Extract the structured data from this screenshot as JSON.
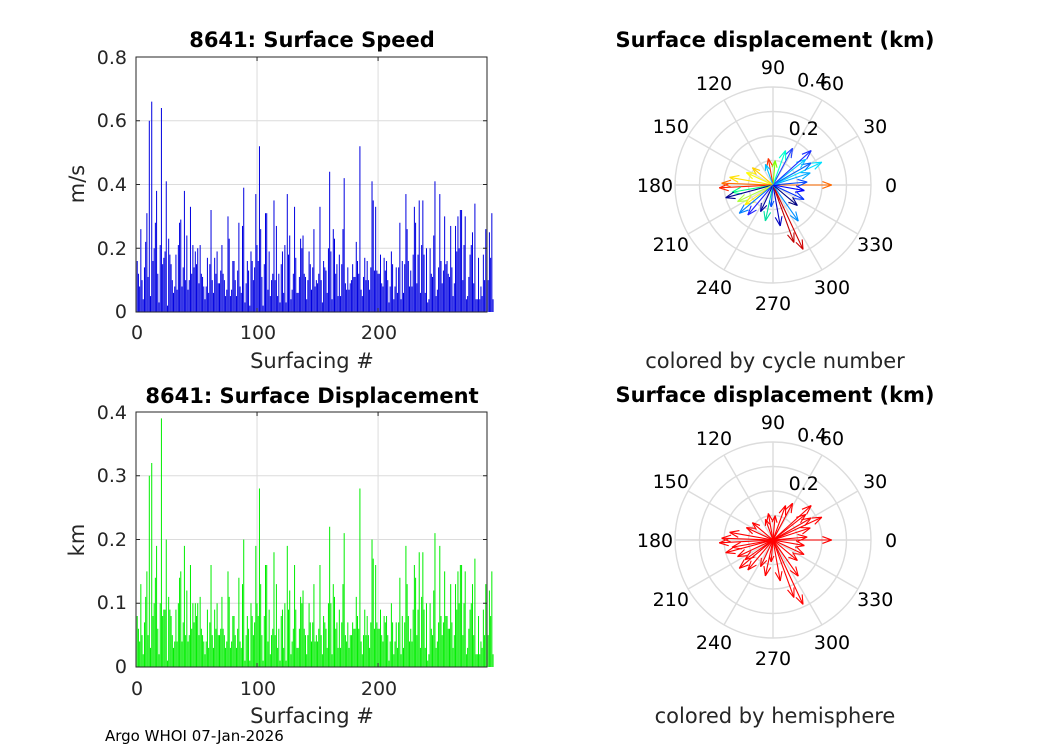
{
  "footer": "Argo WHOI 07-Jan-2026",
  "colors": {
    "speed_bar": "#0000e0",
    "displacement_bar": "#00ee00",
    "hemisphere_arrow": "#ff0000",
    "grid": "#dcdcdc",
    "axis": "#262626"
  },
  "chart_data": [
    {
      "type": "bar",
      "title": "8641: Surface Speed",
      "xlabel": "Surfacing #",
      "ylabel": "m/s",
      "xlim": [
        0,
        290
      ],
      "ylim": [
        0,
        0.8
      ],
      "xticks": [
        "0",
        "100",
        "200"
      ],
      "yticks": [
        "0",
        "0.2",
        "0.4",
        "0.6",
        "0.8"
      ],
      "note": "≈290 surfacings; values estimated from the figure (peaks 0.66 near #12, 0.64 near #22, 0.52 near #101 and #180)",
      "series": [
        {
          "name": "speed",
          "values": [
            0.16,
            0.12,
            0.08,
            0.26,
            0.1,
            0.04,
            0.14,
            0.22,
            0.31,
            0.11,
            0.6,
            0.05,
            0.66,
            0.16,
            0.2,
            0.28,
            0.38,
            0.12,
            0.03,
            0.21,
            0.64,
            0.15,
            0.17,
            0.19,
            0.41,
            0.02,
            0.23,
            0.18,
            0.15,
            0.1,
            0.06,
            0.08,
            0.18,
            0.07,
            0.21,
            0.28,
            0.29,
            0.08,
            0.14,
            0.38,
            0.1,
            0.24,
            0.07,
            0.1,
            0.33,
            0.12,
            0.21,
            0.14,
            0.19,
            0.15,
            0.2,
            0.09,
            0.21,
            0.12,
            0.11,
            0.08,
            0.04,
            0.08,
            0.17,
            0.06,
            0.15,
            0.32,
            0.1,
            0.06,
            0.17,
            0.12,
            0.19,
            0.09,
            0.09,
            0.13,
            0.21,
            0.12,
            0.1,
            0.05,
            0.07,
            0.3,
            0.23,
            0.05,
            0.07,
            0.16,
            0.16,
            0.1,
            0.05,
            0.13,
            0.28,
            0.08,
            0.06,
            0.27,
            0.39,
            0.03,
            0.09,
            0.16,
            0.13,
            0.02,
            0.19,
            0.16,
            0.1,
            0.14,
            0.37,
            0.21,
            0.16,
            0.52,
            0.26,
            0.11,
            0.02,
            0.15,
            0.31,
            0.31,
            0.07,
            0.19,
            0.05,
            0.1,
            0.12,
            0.35,
            0.1,
            0.27,
            0.05,
            0.12,
            0.03,
            0.15,
            0.19,
            0.06,
            0.21,
            0.03,
            0.37,
            0.18,
            0.24,
            0.04,
            0.07,
            0.12,
            0.33,
            0.17,
            0.06,
            0.06,
            0.11,
            0.23,
            0.2,
            0.24,
            0.12,
            0.11,
            0.04,
            0.1,
            0.19,
            0.15,
            0.07,
            0.14,
            0.26,
            0.08,
            0.1,
            0.09,
            0.12,
            0.33,
            0.1,
            0.03,
            0.16,
            0.14,
            0.13,
            0.06,
            0.2,
            0.44,
            0.19,
            0.04,
            0.26,
            0.23,
            0.12,
            0.15,
            0.05,
            0.18,
            0.05,
            0.15,
            0.26,
            0.42,
            0.09,
            0.07,
            0.14,
            0.07,
            0.09,
            0.1,
            0.15,
            0.11,
            0.11,
            0.22,
            0.16,
            0.12,
            0.52,
            0.07,
            0.05,
            0.11,
            0.17,
            0.1,
            0.16,
            0.1,
            0.07,
            0.14,
            0.41,
            0.35,
            0.13,
            0.33,
            0.13,
            0.12,
            0.12,
            0.18,
            0.09,
            0.08,
            0.17,
            0.13,
            0.16,
            0.1,
            0.03,
            0.08,
            0.19,
            0.15,
            0.04,
            0.08,
            0.14,
            0.06,
            0.14,
            0.28,
            0.04,
            0.16,
            0.06,
            0.15,
            0.37,
            0.26,
            0.16,
            0.08,
            0.13,
            0.08,
            0.18,
            0.33,
            0.28,
            0.09,
            0.18,
            0.35,
            0.06,
            0.21,
            0.35,
            0.18,
            0.06,
            0.2,
            0.03,
            0.04,
            0.2,
            0.12,
            0.11,
            0.24,
            0.41,
            0.05,
            0.07,
            0.14,
            0.37,
            0.16,
            0.09,
            0.13,
            0.3,
            0.15,
            0.16,
            0.12,
            0.11,
            0.27,
            0.14,
            0.05,
            0.09,
            0.27,
            0.19,
            0.3,
            0.2,
            0.32,
            0.32,
            0.1,
            0.21,
            0.3,
            0.04,
            0.05,
            0.11,
            0.18,
            0.21,
            0.25,
            0.09,
            0.34,
            0.04,
            0.04,
            0.17,
            0.04,
            0.08,
            0.05,
            0.18,
            0.1,
            0.26,
            0.1,
            0.1,
            0.25,
            0.17,
            0.31,
            0.04
          ]
        }
      ]
    },
    {
      "type": "polar",
      "title": "Surface displacement (km)",
      "caption": "colored by cycle number",
      "rlim": [
        0,
        0.4
      ],
      "rticks": [
        "0.2",
        "0.4"
      ],
      "angle_ticks": [
        "0",
        "30",
        "60",
        "90",
        "120",
        "150",
        "180",
        "210",
        "240",
        "270",
        "300",
        "330"
      ],
      "note": "displacement arrows from origin; a representative subset with angles (deg) and lengths (km) estimated from the figure; colormap = cycle number (early=blue, late=red)",
      "arrows": [
        {
          "angle": 0,
          "r": 0.24,
          "color": "#ff6a00"
        },
        {
          "angle": 5,
          "r": 0.14,
          "color": "#0044ff"
        },
        {
          "angle": 18,
          "r": 0.16,
          "color": "#00aaff"
        },
        {
          "angle": 25,
          "r": 0.22,
          "color": "#00e0ff"
        },
        {
          "angle": 30,
          "r": 0.18,
          "color": "#0066ff"
        },
        {
          "angle": 38,
          "r": 0.17,
          "color": "#00c8ff"
        },
        {
          "angle": 42,
          "r": 0.21,
          "color": "#1b2fff"
        },
        {
          "angle": 62,
          "r": 0.17,
          "color": "#2040ff"
        },
        {
          "angle": 70,
          "r": 0.15,
          "color": "#00ffd0"
        },
        {
          "angle": 85,
          "r": 0.1,
          "color": "#80ff00"
        },
        {
          "angle": 100,
          "r": 0.11,
          "color": "#ff3000"
        },
        {
          "angle": 110,
          "r": 0.09,
          "color": "#00c0ff"
        },
        {
          "angle": 140,
          "r": 0.11,
          "color": "#ffd000"
        },
        {
          "angle": 155,
          "r": 0.12,
          "color": "#ffff00"
        },
        {
          "angle": 170,
          "r": 0.18,
          "color": "#ffe000"
        },
        {
          "angle": 178,
          "r": 0.21,
          "color": "#ff7000"
        },
        {
          "angle": 183,
          "r": 0.22,
          "color": "#ff2000"
        },
        {
          "angle": 190,
          "r": 0.17,
          "color": "#00ff80"
        },
        {
          "angle": 195,
          "r": 0.2,
          "color": "#000090"
        },
        {
          "angle": 205,
          "r": 0.16,
          "color": "#b0ff40"
        },
        {
          "angle": 215,
          "r": 0.14,
          "color": "#ffee00"
        },
        {
          "angle": 220,
          "r": 0.18,
          "color": "#0080ff"
        },
        {
          "angle": 230,
          "r": 0.16,
          "color": "#2020ff"
        },
        {
          "angle": 245,
          "r": 0.12,
          "color": "#0000a0"
        },
        {
          "angle": 258,
          "r": 0.15,
          "color": "#00e0a0"
        },
        {
          "angle": 265,
          "r": 0.09,
          "color": "#0050ff"
        },
        {
          "angle": 280,
          "r": 0.17,
          "color": "#0000c0"
        },
        {
          "angle": 290,
          "r": 0.25,
          "color": "#c00000"
        },
        {
          "angle": 295,
          "r": 0.29,
          "color": "#d00000"
        },
        {
          "angle": 305,
          "r": 0.18,
          "color": "#0090ff"
        },
        {
          "angle": 320,
          "r": 0.13,
          "color": "#000080"
        },
        {
          "angle": 335,
          "r": 0.14,
          "color": "#0030ff"
        },
        {
          "angle": 350,
          "r": 0.13,
          "color": "#0000ff"
        }
      ]
    },
    {
      "type": "bar",
      "title": "8641: Surface Displacement",
      "xlabel": "Surfacing #",
      "ylabel": "km",
      "xlim": [
        0,
        290
      ],
      "ylim": [
        0,
        0.4
      ],
      "xticks": [
        "0",
        "100",
        "200"
      ],
      "yticks": [
        "0",
        "0.1",
        "0.2",
        "0.3",
        "0.4"
      ],
      "note": "≈290 surfacings; values estimated from the figure (peak 0.39 near #22, 0.32 near #12, 0.28 near #101 and #180)",
      "series": [
        {
          "name": "displacement",
          "values": [
            0.08,
            0.06,
            0.04,
            0.13,
            0.05,
            0.02,
            0.07,
            0.11,
            0.15,
            0.05,
            0.3,
            0.03,
            0.32,
            0.08,
            0.1,
            0.14,
            0.19,
            0.06,
            0.02,
            0.1,
            0.39,
            0.08,
            0.09,
            0.09,
            0.2,
            0.01,
            0.11,
            0.09,
            0.08,
            0.05,
            0.03,
            0.04,
            0.09,
            0.04,
            0.1,
            0.14,
            0.15,
            0.04,
            0.07,
            0.19,
            0.05,
            0.12,
            0.04,
            0.05,
            0.16,
            0.06,
            0.1,
            0.07,
            0.1,
            0.08,
            0.1,
            0.05,
            0.11,
            0.06,
            0.05,
            0.04,
            0.02,
            0.04,
            0.09,
            0.03,
            0.07,
            0.16,
            0.05,
            0.03,
            0.09,
            0.06,
            0.1,
            0.05,
            0.05,
            0.06,
            0.11,
            0.06,
            0.05,
            0.03,
            0.04,
            0.15,
            0.11,
            0.03,
            0.04,
            0.08,
            0.08,
            0.05,
            0.03,
            0.06,
            0.14,
            0.04,
            0.03,
            0.13,
            0.2,
            0.01,
            0.05,
            0.08,
            0.06,
            0.01,
            0.1,
            0.08,
            0.05,
            0.07,
            0.19,
            0.1,
            0.08,
            0.28,
            0.13,
            0.05,
            0.01,
            0.08,
            0.16,
            0.16,
            0.04,
            0.09,
            0.02,
            0.05,
            0.06,
            0.18,
            0.05,
            0.13,
            0.03,
            0.06,
            0.01,
            0.08,
            0.09,
            0.03,
            0.1,
            0.01,
            0.19,
            0.09,
            0.12,
            0.02,
            0.04,
            0.06,
            0.16,
            0.09,
            0.03,
            0.03,
            0.06,
            0.11,
            0.1,
            0.12,
            0.06,
            0.05,
            0.02,
            0.05,
            0.1,
            0.07,
            0.04,
            0.07,
            0.13,
            0.04,
            0.05,
            0.04,
            0.06,
            0.16,
            0.05,
            0.02,
            0.08,
            0.07,
            0.06,
            0.03,
            0.1,
            0.22,
            0.1,
            0.02,
            0.13,
            0.11,
            0.06,
            0.07,
            0.03,
            0.09,
            0.03,
            0.07,
            0.13,
            0.21,
            0.05,
            0.04,
            0.07,
            0.03,
            0.05,
            0.05,
            0.07,
            0.06,
            0.06,
            0.11,
            0.08,
            0.06,
            0.28,
            0.04,
            0.02,
            0.05,
            0.09,
            0.05,
            0.08,
            0.05,
            0.03,
            0.07,
            0.2,
            0.17,
            0.06,
            0.16,
            0.07,
            0.06,
            0.06,
            0.09,
            0.05,
            0.04,
            0.08,
            0.07,
            0.08,
            0.05,
            0.01,
            0.04,
            0.1,
            0.07,
            0.02,
            0.04,
            0.07,
            0.03,
            0.07,
            0.14,
            0.02,
            0.08,
            0.03,
            0.07,
            0.19,
            0.13,
            0.08,
            0.04,
            0.06,
            0.04,
            0.09,
            0.16,
            0.14,
            0.05,
            0.09,
            0.18,
            0.03,
            0.11,
            0.18,
            0.09,
            0.03,
            0.1,
            0.01,
            0.02,
            0.1,
            0.06,
            0.05,
            0.12,
            0.21,
            0.03,
            0.04,
            0.07,
            0.19,
            0.08,
            0.05,
            0.07,
            0.15,
            0.08,
            0.08,
            0.06,
            0.06,
            0.13,
            0.07,
            0.03,
            0.05,
            0.13,
            0.09,
            0.15,
            0.1,
            0.16,
            0.16,
            0.05,
            0.1,
            0.15,
            0.02,
            0.03,
            0.06,
            0.09,
            0.1,
            0.13,
            0.05,
            0.17,
            0.02,
            0.02,
            0.08,
            0.02,
            0.04,
            0.03,
            0.09,
            0.05,
            0.13,
            0.05,
            0.05,
            0.12,
            0.08,
            0.15,
            0.02
          ]
        }
      ]
    },
    {
      "type": "polar",
      "title": "Surface displacement (km)",
      "caption": "colored by hemisphere",
      "rlim": [
        0,
        0.4
      ],
      "rticks": [
        "0.2",
        "0.4"
      ],
      "angle_ticks": [
        "0",
        "30",
        "60",
        "90",
        "120",
        "150",
        "180",
        "210",
        "240",
        "270",
        "300",
        "330"
      ],
      "note": "same displacement arrows, all drawn in red (single hemisphere)",
      "arrows_ref": "same angles and lengths as the cycle-number plot",
      "arrow_color": "#ff0000"
    }
  ]
}
